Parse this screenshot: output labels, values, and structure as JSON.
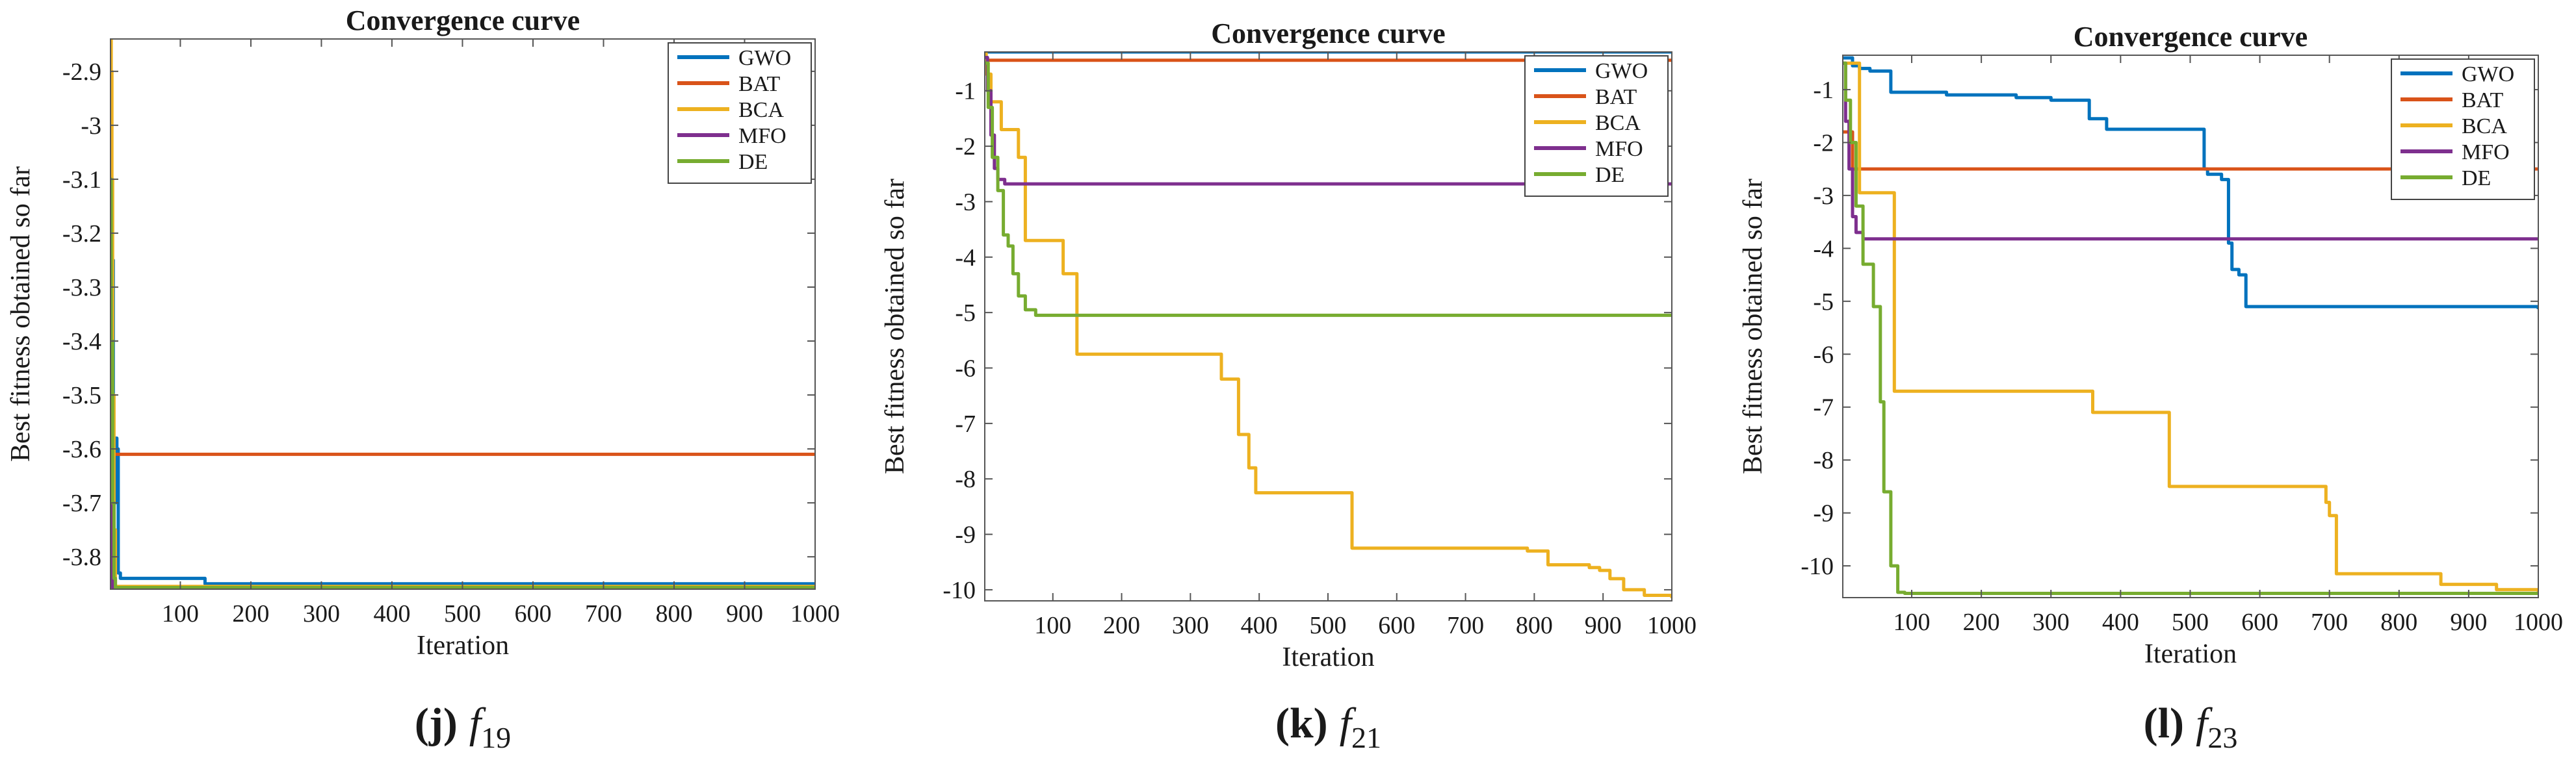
{
  "colors": {
    "GWO": "#0072BD",
    "BAT": "#D95319",
    "BCA": "#EDB120",
    "MFO": "#7E2F8E",
    "DE": "#77AC30"
  },
  "chart_data": [
    {
      "type": "line",
      "title": "Convergence curve",
      "xlabel": "Iteration",
      "ylabel": "Best fitness obtained so far",
      "xlim": [
        1,
        1000
      ],
      "ylim": [
        -3.86,
        -2.84
      ],
      "xticks": [
        100,
        200,
        300,
        400,
        500,
        600,
        700,
        800,
        900,
        1000
      ],
      "yticks": [
        -3.8,
        -3.7,
        -3.6,
        -3.5,
        -3.4,
        -3.3,
        -3.2,
        -3.1,
        -3.0,
        -2.9
      ],
      "ytick_labels": [
        "-3.8",
        "-3.7",
        "-3.6",
        "-3.5",
        "-3.4",
        "-3.3",
        "-3.2",
        "-3.1",
        "-3",
        "-2.9"
      ],
      "grid": false,
      "legend_position": "top-right",
      "caption": {
        "letter": "(j)",
        "fn": "f",
        "sub": "19"
      },
      "series": [
        {
          "name": "GWO",
          "x": [
            1,
            5,
            8,
            10,
            12,
            15,
            130,
            135,
            1000
          ],
          "y": [
            -3.25,
            -3.7,
            -3.58,
            -3.6,
            -3.83,
            -3.84,
            -3.84,
            -3.85,
            -3.855
          ],
          "step": true
        },
        {
          "name": "BAT",
          "x": [
            1,
            3,
            1000
          ],
          "y": [
            -3.43,
            -3.61,
            -3.61
          ],
          "step": true
        },
        {
          "name": "BCA",
          "x": [
            1,
            2,
            3,
            4,
            6,
            8,
            1000
          ],
          "y": [
            -2.84,
            -2.9,
            -3.1,
            -3.5,
            -3.75,
            -3.855,
            -3.856
          ],
          "step": true
        },
        {
          "name": "MFO",
          "x": [
            1,
            2,
            4,
            1000
          ],
          "y": [
            -3.45,
            -3.75,
            -3.857,
            -3.857
          ],
          "step": true
        },
        {
          "name": "DE",
          "x": [
            1,
            2,
            4,
            6,
            8,
            1000
          ],
          "y": [
            -3.1,
            -3.4,
            -3.7,
            -3.84,
            -3.857,
            -3.857
          ],
          "step": true
        }
      ]
    },
    {
      "type": "line",
      "title": "Convergence curve",
      "xlabel": "Iteration",
      "ylabel": "Best fitness obtained so far",
      "xlim": [
        1,
        1000
      ],
      "ylim": [
        -10.2,
        -0.3
      ],
      "xticks": [
        100,
        200,
        300,
        400,
        500,
        600,
        700,
        800,
        900,
        1000
      ],
      "yticks": [
        -10,
        -9,
        -8,
        -7,
        -6,
        -5,
        -4,
        -3,
        -2,
        -1
      ],
      "ytick_labels": [
        "-10",
        "-9",
        "-8",
        "-7",
        "-6",
        "-5",
        "-4",
        "-3",
        "-2",
        "-1"
      ],
      "grid": false,
      "legend_position": "top-right",
      "caption": {
        "letter": "(k)",
        "fn": "f",
        "sub": "21"
      },
      "series": [
        {
          "name": "GWO",
          "x": [
            1,
            1000
          ],
          "y": [
            -0.3,
            -0.3
          ],
          "step": true
        },
        {
          "name": "BAT",
          "x": [
            1,
            1000
          ],
          "y": [
            -0.45,
            -0.45
          ],
          "step": true
        },
        {
          "name": "BCA",
          "x": [
            1,
            3,
            10,
            25,
            50,
            60,
            80,
            95,
            115,
            130,
            135,
            335,
            345,
            362,
            370,
            385,
            395,
            530,
            535,
            780,
            790,
            820,
            830,
            880,
            895,
            910,
            930,
            960,
            1000
          ],
          "y": [
            -0.3,
            -0.7,
            -1.2,
            -1.7,
            -2.2,
            -3.7,
            -3.7,
            -3.7,
            -4.3,
            -4.3,
            -5.75,
            -5.75,
            -6.2,
            -6.2,
            -7.2,
            -7.8,
            -8.25,
            -8.25,
            -9.25,
            -9.25,
            -9.3,
            -9.55,
            -9.55,
            -9.6,
            -9.65,
            -9.8,
            -10.0,
            -10.1,
            -10.15
          ],
          "step": true
        },
        {
          "name": "MFO",
          "x": [
            1,
            5,
            10,
            15,
            20,
            30,
            1000
          ],
          "y": [
            -0.4,
            -1.0,
            -1.8,
            -2.4,
            -2.6,
            -2.68,
            -2.68
          ],
          "step": true
        },
        {
          "name": "DE",
          "x": [
            1,
            6,
            12,
            20,
            28,
            35,
            42,
            50,
            60,
            75,
            1000
          ],
          "y": [
            -0.5,
            -1.3,
            -2.2,
            -2.8,
            -3.6,
            -3.8,
            -4.3,
            -4.7,
            -4.95,
            -5.05,
            -5.05
          ],
          "step": true
        }
      ]
    },
    {
      "type": "line",
      "title": "Convergence curve",
      "xlabel": "Iteration",
      "ylabel": "Best fitness obtained so far",
      "xlim": [
        1,
        1000
      ],
      "ylim": [
        -10.6,
        -0.35
      ],
      "xticks": [
        100,
        200,
        300,
        400,
        500,
        600,
        700,
        800,
        900,
        1000
      ],
      "yticks": [
        -10,
        -9,
        -8,
        -7,
        -6,
        -5,
        -4,
        -3,
        -2,
        -1
      ],
      "ytick_labels": [
        "-10",
        "-9",
        "-8",
        "-7",
        "-6",
        "-5",
        "-4",
        "-3",
        "-2",
        "-1"
      ],
      "grid": false,
      "legend_position": "top-right",
      "caption": {
        "letter": "(l)",
        "fn": "f",
        "sub": "23"
      },
      "series": [
        {
          "name": "GWO",
          "x": [
            1,
            15,
            25,
            40,
            70,
            150,
            250,
            300,
            355,
            380,
            460,
            510,
            520,
            525,
            545,
            555,
            560,
            570,
            580,
            1000
          ],
          "y": [
            -0.4,
            -0.55,
            -0.6,
            -0.65,
            -1.05,
            -1.1,
            -1.15,
            -1.2,
            -1.55,
            -1.75,
            -1.75,
            -1.75,
            -2.5,
            -2.6,
            -2.7,
            -3.9,
            -4.4,
            -4.5,
            -5.1,
            -5.15
          ],
          "step": true
        },
        {
          "name": "BAT",
          "x": [
            1,
            15,
            1000
          ],
          "y": [
            -1.8,
            -2.5,
            -2.5
          ],
          "step": true
        },
        {
          "name": "BCA",
          "x": [
            1,
            25,
            30,
            60,
            75,
            350,
            360,
            460,
            470,
            680,
            695,
            700,
            710,
            850,
            860,
            940,
            1000
          ],
          "y": [
            -0.5,
            -2.95,
            -2.95,
            -2.95,
            -6.7,
            -6.7,
            -7.1,
            -7.1,
            -8.5,
            -8.5,
            -8.8,
            -9.05,
            -10.15,
            -10.15,
            -10.35,
            -10.45,
            -10.5
          ],
          "step": true
        },
        {
          "name": "MFO",
          "x": [
            1,
            5,
            10,
            15,
            20,
            30,
            1000
          ],
          "y": [
            -0.5,
            -1.6,
            -2.5,
            -3.4,
            -3.7,
            -3.82,
            -3.82
          ],
          "step": true
        },
        {
          "name": "DE",
          "x": [
            1,
            5,
            12,
            20,
            30,
            45,
            55,
            60,
            70,
            80,
            90,
            1000
          ],
          "y": [
            -0.5,
            -1.2,
            -2.0,
            -3.2,
            -4.3,
            -5.1,
            -6.9,
            -8.6,
            -10.0,
            -10.5,
            -10.52,
            -10.53
          ],
          "step": true
        }
      ]
    }
  ]
}
